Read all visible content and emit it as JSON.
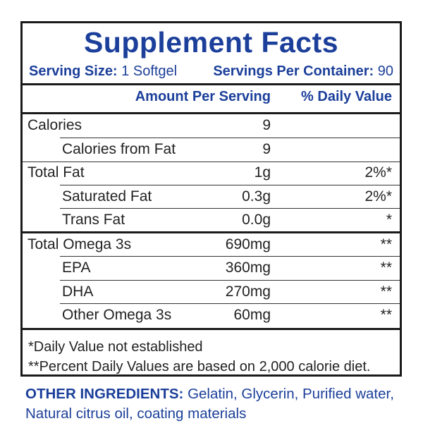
{
  "title": "Supplement Facts",
  "serving": {
    "size_label": "Serving Size:",
    "size_value": "1 Softgel",
    "per_container_label": "Servings Per Container:",
    "per_container_value": "90"
  },
  "header": {
    "amount": "Amount Per Serving",
    "dv": "% Daily Value"
  },
  "rows": [
    {
      "label": "Calories",
      "amount": "9",
      "dv": ""
    },
    {
      "label": "Calories from Fat",
      "amount": "9",
      "dv": ""
    },
    {
      "label": "Total Fat",
      "amount": "1g",
      "dv": "2%*"
    },
    {
      "label": "Saturated Fat",
      "amount": "0.3g",
      "dv": "2%*"
    },
    {
      "label": "Trans Fat",
      "amount": "0.0g",
      "dv": "*"
    },
    {
      "label": "Total Omega 3s",
      "amount": "690mg",
      "dv": "**"
    },
    {
      "label": "EPA",
      "amount": "360mg",
      "dv": "**"
    },
    {
      "label": "DHA",
      "amount": "270mg",
      "dv": "**"
    },
    {
      "label": "Other Omega 3s",
      "amount": "60mg",
      "dv": "**"
    }
  ],
  "footnotes": {
    "one": "*Daily Value not established",
    "two": "**Percent Daily Values are based on 2,000 calorie diet."
  },
  "ingredients": {
    "label": "OTHER INGREDIENTS:",
    "text": " Gelatin, Glycerin, Purified water, Natural citrus oil, coating materials"
  }
}
